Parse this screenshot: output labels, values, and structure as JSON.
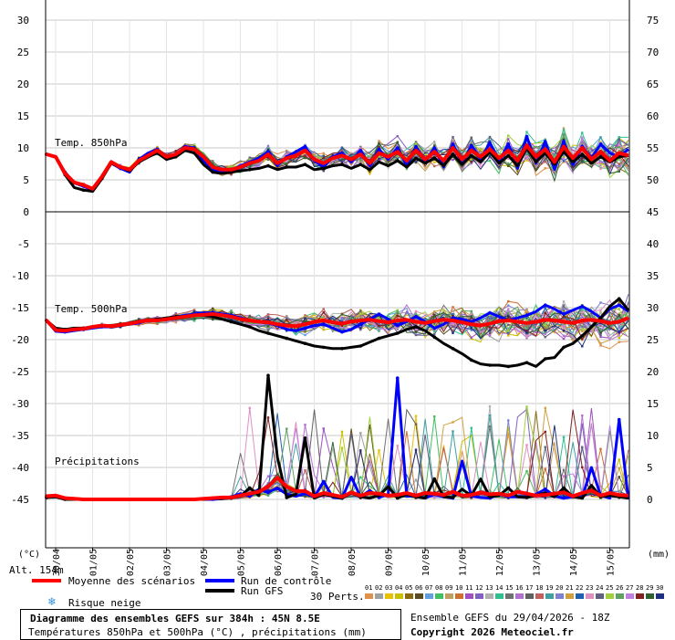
{
  "chart_data": {
    "type": "line",
    "left_axis_ticks": [
      "30",
      "25",
      "20",
      "15",
      "10",
      "5",
      "0",
      "-5",
      "-10",
      "-15",
      "-20",
      "-25",
      "-30",
      "-35",
      "-40",
      "-45"
    ],
    "right_axis_ticks": [
      "75",
      "70",
      "65",
      "60",
      "55",
      "50",
      "45",
      "40",
      "35",
      "30",
      "25",
      "20",
      "15",
      "10",
      "5",
      "0"
    ],
    "x_tick_labels": [
      "30/04",
      "01/05",
      "02/05",
      "03/05",
      "04/05",
      "05/05",
      "06/05",
      "07/05",
      "08/05",
      "09/05",
      "10/05",
      "11/05",
      "12/05",
      "13/05",
      "14/05",
      "15/05"
    ],
    "left_unit": "(°C)",
    "right_unit": "(mm)",
    "altitude_label": "Alt. 154m",
    "panel_labels": {
      "t850": "Temp. 850hPa",
      "t500": "Temp. 500hPa",
      "precip": "Précipitations"
    },
    "x_days": [
      0,
      0.25,
      0.5,
      0.75,
      1,
      1.25,
      1.5,
      1.75,
      2,
      2.25,
      2.5,
      2.75,
      3,
      3.25,
      3.5,
      3.75,
      4,
      4.25,
      4.5,
      4.75,
      5,
      5.25,
      5.5,
      5.75,
      6,
      6.25,
      6.5,
      6.75,
      7,
      7.25,
      7.5,
      7.75,
      8,
      8.25,
      8.5,
      8.75,
      9,
      9.25,
      9.5,
      9.75,
      10,
      10.25,
      10.5,
      10.75,
      11,
      11.25,
      11.5,
      11.75,
      12,
      12.25,
      12.5,
      12.75,
      13,
      13.25,
      13.5,
      13.75,
      14,
      14.25,
      14.5,
      14.75,
      15,
      15.25,
      15.5,
      15.75
    ],
    "series": [
      {
        "name": "Moyenne des scénarios",
        "color": "#ff0000",
        "t850": [
          9,
          8.6,
          6,
          4.6,
          4.2,
          3.6,
          5.5,
          7.8,
          7,
          6.6,
          8,
          8.8,
          9.6,
          8.6,
          9,
          10,
          9.8,
          8.6,
          7,
          6.6,
          6.6,
          7,
          7.6,
          8,
          9,
          7.6,
          8.4,
          8.8,
          9.6,
          8.2,
          7.6,
          8.4,
          8.8,
          8.2,
          9,
          7.6,
          9.2,
          8.6,
          9.4,
          8,
          9.6,
          8.2,
          9.4,
          8,
          10,
          8.2,
          9.6,
          8.6,
          9.8,
          8.4,
          9.6,
          8,
          10.4,
          8.6,
          9.8,
          7.8,
          10.2,
          8.4,
          10,
          8.2,
          9.4,
          8,
          9.2,
          8.8
        ],
        "t500": [
          -17,
          -18.5,
          -18.6,
          -18.4,
          -18.3,
          -18,
          -17.8,
          -17.9,
          -17.7,
          -17.5,
          -17.2,
          -17,
          -17,
          -16.8,
          -16.6,
          -16.4,
          -16.2,
          -16.1,
          -16,
          -16.2,
          -16.4,
          -16.8,
          -17,
          -17.2,
          -17.3,
          -17.6,
          -17.8,
          -17.9,
          -17.6,
          -17.2,
          -17,
          -17.3,
          -17.5,
          -17.2,
          -17,
          -16.9,
          -17.1,
          -17.3,
          -17,
          -16.9,
          -17.2,
          -17.4,
          -17.1,
          -16.9,
          -17,
          -17.3,
          -17.6,
          -17.8,
          -17.5,
          -17.1,
          -17,
          -17.2,
          -17.4,
          -17.2,
          -16.9,
          -17,
          -17.2,
          -17.4,
          -17,
          -16.9,
          -17.1,
          -17.4,
          -17.2,
          -16.6
        ],
        "precip": [
          0.5,
          0.6,
          0.2,
          0.1,
          0,
          0,
          0,
          0,
          0,
          0,
          0,
          0,
          0,
          0,
          0,
          0,
          0,
          0.1,
          0.2,
          0.3,
          0.3,
          0.6,
          0.9,
          1.2,
          2,
          3.4,
          2,
          1.3,
          1.3,
          0.5,
          1,
          0.7,
          0.4,
          1.1,
          0.6,
          1,
          0.9,
          0.6,
          0.7,
          1,
          0.6,
          1,
          0.9,
          0.7,
          1.2,
          0.6,
          0.7,
          1.1,
          0.8,
          0.9,
          0.6,
          1.2,
          0.9,
          0.6,
          0.7,
          0.9,
          1.1,
          0.5,
          1,
          1.4,
          0.6,
          1,
          0.7,
          0.6
        ]
      },
      {
        "name": "Run de contrôle",
        "color": "#0000ff",
        "t850": [
          9,
          8.5,
          6.2,
          4.5,
          4,
          3.4,
          5.4,
          7.6,
          6.8,
          6.2,
          8.2,
          9.2,
          9.8,
          8.2,
          8.8,
          10.2,
          10,
          8,
          6.6,
          6.2,
          6.4,
          7.2,
          7.8,
          8.4,
          9.4,
          7.2,
          8.6,
          9.4,
          10.2,
          8,
          7,
          8.6,
          9.2,
          7.8,
          9.6,
          7.2,
          9.8,
          8.2,
          10,
          7.2,
          10.2,
          7.8,
          10,
          7,
          10.6,
          7.6,
          10.4,
          8.2,
          10.8,
          7.8,
          10.6,
          6.8,
          11.8,
          7.6,
          11,
          6.6,
          11,
          7.4,
          10.2,
          8.4,
          10.6,
          9.2,
          8.6,
          9.8
        ],
        "t500": [
          -17,
          -18.7,
          -18.8,
          -18.6,
          -18.4,
          -18.2,
          -18,
          -18,
          -17.8,
          -17.6,
          -17.4,
          -17,
          -16.9,
          -16.8,
          -16.5,
          -16.2,
          -16,
          -15.8,
          -15.8,
          -16,
          -16.2,
          -16.6,
          -17,
          -17.2,
          -17.4,
          -17.8,
          -18.4,
          -18.6,
          -18.2,
          -17.8,
          -17.6,
          -18.2,
          -18.8,
          -18.4,
          -17.6,
          -16.8,
          -16,
          -16.8,
          -17.8,
          -17.2,
          -16.4,
          -17.2,
          -18.2,
          -17.6,
          -16.6,
          -16.8,
          -17.2,
          -16.6,
          -15.8,
          -16.4,
          -17,
          -16.6,
          -16.2,
          -15.6,
          -14.6,
          -15.2,
          -16,
          -15.4,
          -14.8,
          -15.6,
          -16.6,
          -15.2,
          -14.6,
          -15.6
        ],
        "precip": [
          0.4,
          0.4,
          0.1,
          0,
          0,
          0,
          0,
          0,
          0,
          0,
          0,
          0,
          0,
          0,
          0,
          0,
          0,
          0,
          0,
          0.1,
          0.4,
          0.9,
          0.5,
          1.6,
          1.1,
          1.8,
          0.8,
          0.5,
          0.9,
          0.4,
          2.8,
          0.3,
          0.2,
          3.5,
          0.4,
          1.4,
          0.3,
          0.8,
          19,
          0.5,
          0.5,
          0.2,
          0.8,
          0.4,
          0.2,
          6,
          0.5,
          0.3,
          0.2,
          0.8,
          0.4,
          0.4,
          0.4,
          0.8,
          1.6,
          0.5,
          0.2,
          0.4,
          0.3,
          5,
          0.6,
          0.2,
          12.5,
          0
        ]
      },
      {
        "name": "Run GFS",
        "color": "#000000",
        "t850": [
          9,
          8.6,
          5.8,
          3.8,
          3.4,
          3.2,
          5.2,
          7.6,
          7,
          6.4,
          7.8,
          8.6,
          9.2,
          8.2,
          8.6,
          9.6,
          9.2,
          7.4,
          6.2,
          6,
          6.2,
          6.4,
          6.6,
          6.8,
          7.2,
          6.6,
          7,
          7,
          7.4,
          6.6,
          6.8,
          7.2,
          7.4,
          6.8,
          7.4,
          6.6,
          7.8,
          7.2,
          8,
          7,
          8.4,
          7.6,
          8.4,
          7.2,
          9,
          7.4,
          8.8,
          7.8,
          9.4,
          7.6,
          8.8,
          7.2,
          10,
          7.8,
          9.2,
          7.4,
          9.4,
          7.8,
          9,
          7.6,
          8.6,
          7.8,
          8.6,
          8.8
        ],
        "t500": [
          -17,
          -18.2,
          -18.4,
          -18.2,
          -18.2,
          -18,
          -17.8,
          -17.8,
          -17.6,
          -17.4,
          -17.2,
          -17,
          -16.8,
          -16.6,
          -16.4,
          -16.4,
          -16.2,
          -16.2,
          -16.4,
          -16.8,
          -17.2,
          -17.6,
          -18,
          -18.6,
          -19,
          -19.4,
          -19.8,
          -20.2,
          -20.6,
          -21,
          -21.2,
          -21.4,
          -21.4,
          -21.2,
          -21,
          -20.4,
          -19.8,
          -19.4,
          -19,
          -18.4,
          -18,
          -18.6,
          -19.6,
          -20.6,
          -21.4,
          -22.2,
          -23.2,
          -23.8,
          -24,
          -24,
          -24.2,
          -24,
          -23.6,
          -24.2,
          -23,
          -22.8,
          -21.2,
          -20.6,
          -19.4,
          -18,
          -16.6,
          -14.8,
          -13.6,
          -15.4
        ],
        "precip": [
          0.3,
          0.4,
          0,
          0,
          0,
          0,
          0,
          0,
          0,
          0,
          0,
          0,
          0,
          0,
          0,
          0,
          0,
          0,
          0.2,
          0.1,
          0.2,
          0.5,
          1.8,
          0.6,
          19.4,
          6.6,
          0.3,
          0.8,
          9.6,
          0.2,
          0.8,
          0.5,
          0.2,
          1,
          0.4,
          0.2,
          0.6,
          2,
          0.2,
          0.8,
          0.4,
          0.2,
          3.2,
          0.4,
          0.3,
          1.6,
          0.6,
          3.2,
          0.4,
          0.6,
          1.8,
          0.4,
          0.3,
          0.6,
          1,
          0.4,
          1.8,
          0.4,
          0.2,
          2.2,
          0.4,
          0.6,
          0.4,
          0.2
        ]
      }
    ],
    "perturbation_count": 30
  },
  "legend": {
    "mean": "Moyenne des scénarios",
    "control": "Run de contrôle",
    "gfs": "Run GFS",
    "snow": "Risque neige",
    "perts_label": "30 Perts.",
    "pert_numbers": [
      "01",
      "02",
      "03",
      "04",
      "05",
      "06",
      "07",
      "08",
      "09",
      "10",
      "11",
      "12",
      "13",
      "14",
      "15",
      "16",
      "17",
      "18",
      "19",
      "20",
      "21",
      "22",
      "23",
      "24",
      "25",
      "26",
      "27",
      "28",
      "29",
      "30"
    ],
    "pert_colors": [
      "#e0904a",
      "#a0a0a0",
      "#e8c000",
      "#c8c000",
      "#8a6a10",
      "#5a4a20",
      "#60a0e0",
      "#40c060",
      "#c0a060",
      "#d07030",
      "#a050c0",
      "#8060c0",
      "#b0b0b0",
      "#30c090",
      "#707070",
      "#b070d0",
      "#606060",
      "#c06060",
      "#40a0a0",
      "#8080d0",
      "#d0a040",
      "#2060b0",
      "#e090c0",
      "#606080",
      "#a0d040",
      "#60a060",
      "#c080e0",
      "#802020",
      "#306030",
      "#203080"
    ]
  },
  "footer": {
    "title": "Diagramme des ensembles GEFS sur 384h : 45N 8.5E",
    "subtitle": "Températures 850hPa et 500hPa (°C) , précipitations (mm)",
    "run": "Ensemble GEFS du 29/04/2026 - 18Z",
    "copyright": "Copyright 2026 Meteociel.fr"
  }
}
